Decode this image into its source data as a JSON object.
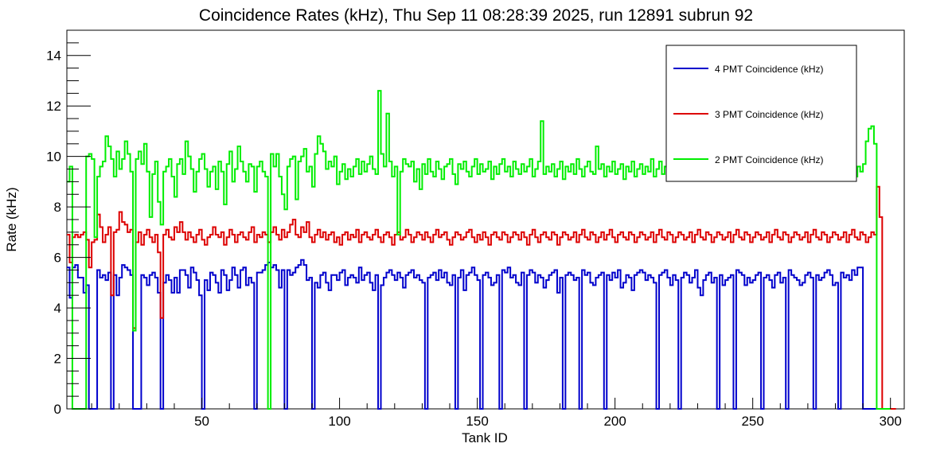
{
  "chart_data": {
    "type": "line",
    "title": "Coincidence Rates (kHz), Thu Sep 11 08:28:39 2025, run 12891 subrun 92",
    "xlabel": "Tank ID",
    "ylabel": "Rate (kHz)",
    "xlim": [
      1,
      305
    ],
    "ylim": [
      0,
      15
    ],
    "x_ticks": [
      50,
      100,
      150,
      200,
      250,
      300
    ],
    "y_ticks": [
      0,
      2,
      4,
      6,
      8,
      10,
      12,
      14
    ],
    "step": true,
    "legend_position": "top-right",
    "grid": false,
    "series": [
      {
        "name": "4 PMT Coincidence (kHz)",
        "color": "#0000cc",
        "values": [
          5.6,
          4.4,
          5.6,
          5.7,
          5.2,
          5.2,
          4.6,
          4.9,
          0,
          0,
          0,
          5.5,
          5.2,
          5.3,
          5.1,
          5.4,
          0,
          5.3,
          4.5,
          5.2,
          5.7,
          5.6,
          5.5,
          5.3,
          0,
          0,
          0,
          5.3,
          5.2,
          4.9,
          5.3,
          5.4,
          5.2,
          4.6,
          0,
          5.0,
          5.3,
          5.1,
          4.6,
          5.2,
          4.6,
          5.5,
          5.5,
          5.3,
          4.8,
          5.6,
          5.4,
          5.1,
          4.5,
          0,
          5.1,
          4.7,
          5.4,
          5.3,
          5.0,
          4.6,
          5.5,
          5.3,
          4.7,
          5.1,
          5.6,
          5.3,
          4.8,
          5.5,
          5.6,
          4.9,
          5.2,
          5.0,
          0,
          5.4,
          5.4,
          5.5,
          5.7,
          5.8,
          5.6,
          5.7,
          5.5,
          4.8,
          5.5,
          0,
          5.5,
          5.3,
          5.4,
          5.6,
          5.7,
          5.9,
          5.7,
          5.1,
          5.2,
          0,
          5.0,
          4.8,
          5.3,
          5.4,
          5.0,
          4.7,
          5.3,
          5.3,
          5.1,
          5.4,
          5.5,
          4.9,
          5.2,
          5.3,
          5.2,
          5.0,
          5.6,
          5.1,
          5.3,
          5.4,
          5.0,
          4.7,
          5.3,
          0,
          4.9,
          5.2,
          5.4,
          5.5,
          5.3,
          5.1,
          5.4,
          5.2,
          4.8,
          5.3,
          5.4,
          5.5,
          5.2,
          5.3,
          5.1,
          5.0,
          0,
          5.2,
          5.3,
          5.4,
          5.1,
          5.5,
          5.2,
          5.4,
          5.0,
          4.9,
          5.3,
          0,
          5.2,
          5.5,
          4.7,
          5.3,
          5.4,
          5.6,
          5.3,
          5.1,
          0,
          5.3,
          5.4,
          5.2,
          4.9,
          5.0,
          5.3,
          0,
          5.5,
          5.4,
          5.6,
          5.2,
          5.3,
          5.0,
          4.9,
          5.4,
          0,
          5.3,
          5.5,
          5.4,
          5.0,
          5.3,
          5.2,
          4.8,
          5.1,
          5.3,
          5.4,
          5.5,
          4.6,
          5.2,
          0,
          5.3,
          5.4,
          5.3,
          5.1,
          5.2,
          0,
          5.5,
          5.3,
          5.4,
          5.0,
          4.9,
          5.2,
          5.3,
          5.4,
          0,
          5.3,
          5.1,
          5.4,
          5.2,
          5.5,
          4.8,
          5.0,
          5.3,
          5.2,
          4.7,
          5.3,
          5.4,
          5.5,
          5.4,
          5.1,
          5.3,
          5.2,
          5.0,
          0,
          5.3,
          5.4,
          5.5,
          5.2,
          4.9,
          5.3,
          5.1,
          0,
          5.2,
          5.4,
          5.3,
          5.0,
          5.2,
          5.5,
          4.8,
          4.5,
          5.1,
          5.3,
          5.4,
          5.0,
          5.2,
          0,
          5.3,
          4.9,
          5.1,
          5.2,
          5.3,
          0,
          5.5,
          5.4,
          5.3,
          4.9,
          5.2,
          5.0,
          5.1,
          5.3,
          5.4,
          0,
          5.2,
          5.3,
          5.1,
          4.8,
          5.3,
          5.4,
          5.0,
          5.2,
          0,
          5.5,
          5.3,
          5.2,
          5.1,
          4.9,
          5.0,
          5.3,
          5.4,
          5.2,
          0,
          5.3,
          5.1,
          5.2,
          5.4,
          5.5,
          5.3,
          4.9,
          5.0,
          0,
          5.4,
          5.2,
          5.3,
          5.1,
          5.5,
          5.3,
          5.6,
          5.6,
          0,
          0,
          0,
          0,
          0
        ]
      },
      {
        "name": "3 PMT Coincidence (kHz)",
        "color": "#dd0000",
        "values": [
          6.9,
          5.8,
          6.8,
          6.9,
          6.8,
          6.9,
          7.0,
          6.7,
          5.6,
          6.6,
          6.7,
          7.7,
          7.2,
          6.6,
          6.9,
          7.2,
          4.5,
          7.0,
          7.1,
          7.8,
          7.4,
          7.3,
          7.0,
          7.1,
          3.2,
          6.6,
          7.0,
          6.5,
          6.9,
          7.1,
          6.8,
          6.6,
          6.9,
          6.2,
          3.6,
          6.9,
          7.1,
          6.8,
          6.7,
          7.2,
          7.0,
          7.4,
          7.0,
          6.7,
          7.0,
          6.8,
          6.6,
          6.9,
          7.1,
          6.7,
          6.5,
          6.8,
          6.9,
          7.2,
          6.9,
          6.8,
          7.0,
          6.5,
          6.8,
          7.1,
          6.9,
          6.6,
          6.9,
          7.0,
          6.8,
          6.7,
          7.0,
          7.2,
          6.6,
          6.9,
          6.8,
          7.0,
          6.9,
          6.6,
          7.0,
          7.2,
          6.9,
          6.7,
          7.1,
          6.8,
          7.0,
          7.3,
          7.5,
          6.9,
          6.8,
          7.2,
          7.0,
          7.4,
          6.8,
          6.6,
          6.9,
          7.1,
          6.8,
          7.0,
          6.7,
          6.9,
          7.0,
          6.6,
          6.8,
          6.5,
          6.9,
          7.0,
          6.7,
          6.9,
          6.8,
          7.1,
          6.6,
          6.9,
          7.0,
          6.8,
          6.7,
          6.9,
          7.1,
          6.8,
          6.6,
          6.9,
          7.0,
          6.8,
          6.5,
          6.9,
          7.0,
          6.7,
          6.8,
          7.1,
          6.9,
          6.6,
          6.8,
          7.0,
          6.9,
          6.7,
          7.0,
          6.8,
          6.6,
          6.9,
          7.1,
          6.8,
          6.9,
          7.0,
          6.7,
          6.5,
          6.8,
          7.0,
          6.9,
          6.7,
          6.8,
          7.0,
          7.1,
          6.8,
          6.6,
          6.9,
          6.7,
          7.0,
          6.8,
          6.5,
          6.9,
          7.0,
          6.8,
          6.7,
          7.0,
          6.9,
          6.6,
          6.8,
          7.0,
          6.9,
          6.7,
          7.0,
          6.8,
          6.5,
          6.9,
          7.1,
          6.8,
          6.6,
          6.9,
          7.0,
          6.8,
          6.7,
          7.0,
          6.9,
          6.5,
          6.8,
          7.0,
          6.9,
          6.7,
          6.8,
          7.0,
          6.6,
          6.9,
          7.1,
          6.8,
          6.7,
          7.0,
          6.9,
          6.6,
          6.8,
          7.0,
          6.7,
          6.9,
          7.1,
          6.8,
          6.6,
          6.9,
          7.0,
          6.8,
          6.7,
          7.0,
          6.9,
          6.6,
          6.8,
          7.0,
          6.9,
          6.7,
          6.8,
          7.0,
          6.6,
          6.9,
          7.1,
          6.8,
          6.7,
          7.0,
          6.9,
          6.6,
          6.8,
          7.0,
          6.9,
          6.7,
          6.8,
          7.0,
          6.6,
          6.9,
          7.1,
          6.8,
          6.7,
          7.0,
          6.9,
          6.6,
          6.8,
          7.0,
          6.9,
          6.7,
          6.8,
          7.0,
          6.6,
          6.9,
          7.1,
          6.8,
          6.7,
          7.0,
          6.9,
          6.6,
          6.8,
          7.0,
          6.9,
          6.7,
          6.8,
          7.0,
          6.6,
          6.9,
          7.1,
          6.8,
          6.7,
          7.0,
          6.9,
          6.6,
          6.8,
          7.0,
          6.9,
          6.7,
          6.8,
          7.0,
          6.6,
          6.9,
          7.1,
          6.8,
          6.7,
          7.0,
          6.9,
          6.6,
          6.8,
          7.0,
          6.9,
          6.7,
          6.8,
          7.0,
          6.6,
          6.9,
          7.1,
          6.8,
          6.7,
          7.0,
          6.9,
          6.6,
          6.8,
          7.0,
          6.9,
          8.8,
          7.6,
          0,
          0,
          0,
          0,
          0
        ]
      },
      {
        "name": "2 PMT Coincidence (kHz)",
        "color": "#00ee00",
        "values": [
          9.0,
          9.6,
          0,
          0,
          0,
          0,
          0,
          10.0,
          10.1,
          9.9,
          6.8,
          9.2,
          9.6,
          9.8,
          10.8,
          10.4,
          9.9,
          9.2,
          10.2,
          9.5,
          9.9,
          10.6,
          10.1,
          9.4,
          3.1,
          9.9,
          10.2,
          9.7,
          10.5,
          9.4,
          7.6,
          9.3,
          9.8,
          8.2,
          7.3,
          9.4,
          9.6,
          9.9,
          9.2,
          8.4,
          9.7,
          9.9,
          9.3,
          10.6,
          10.0,
          9.5,
          8.6,
          9.4,
          9.9,
          10.1,
          9.5,
          8.8,
          9.4,
          9.6,
          8.7,
          9.8,
          9.4,
          8.1,
          9.7,
          10.2,
          9.0,
          9.5,
          10.4,
          9.8,
          9.4,
          9.0,
          9.7,
          9.6,
          8.6,
          9.6,
          9.8,
          9.4,
          9.2,
          0,
          10.1,
          9.6,
          10.1,
          9.2,
          8.5,
          7.9,
          9.6,
          9.9,
          10.0,
          8.3,
          9.8,
          10.0,
          10.3,
          9.4,
          9.6,
          8.8,
          10.1,
          10.8,
          10.5,
          10.2,
          9.5,
          9.8,
          9.6,
          10.0,
          8.9,
          9.4,
          9.7,
          9.1,
          9.5,
          9.2,
          9.6,
          9.9,
          9.3,
          9.8,
          9.4,
          9.7,
          10.0,
          9.5,
          9.3,
          12.6,
          10.1,
          9.6,
          11.7,
          9.8,
          9.2,
          9.6,
          6.9,
          9.4,
          9.9,
          9.7,
          9.6,
          9.8,
          9.0,
          9.5,
          8.7,
          9.7,
          9.3,
          9.9,
          9.4,
          9.2,
          9.8,
          9.5,
          9.1,
          9.6,
          9.7,
          9.9,
          9.3,
          8.9,
          9.7,
          9.5,
          9.8,
          9.4,
          9.2,
          9.6,
          9.9,
          9.3,
          9.7,
          9.4,
          9.5,
          9.8,
          9.1,
          9.6,
          9.3,
          9.7,
          9.9,
          9.4,
          9.6,
          9.2,
          9.8,
          9.5,
          9.3,
          9.7,
          9.4,
          9.6,
          9.9,
          9.2,
          9.5,
          9.8,
          11.4,
          9.3,
          9.6,
          9.4,
          9.7,
          9.2,
          9.5,
          9.8,
          9.1,
          9.6,
          9.4,
          9.7,
          9.3,
          9.9,
          9.5,
          9.2,
          9.6,
          9.8,
          9.4,
          9.3,
          10.4,
          9.5,
          9.7,
          9.2,
          9.6,
          9.4,
          9.8,
          9.3,
          9.5,
          9.7,
          9.1,
          9.6,
          9.4,
          9.8,
          9.2,
          9.5,
          9.7,
          9.3,
          9.6,
          9.4,
          9.9,
          9.2,
          9.5,
          9.8,
          9.3,
          9.6,
          9.4,
          9.7,
          9.2,
          9.5,
          9.8,
          9.1,
          9.6,
          9.4,
          9.7,
          9.3,
          9.5,
          9.8,
          9.2,
          9.6,
          9.4,
          9.7,
          9.3,
          9.5,
          9.8,
          9.1,
          9.6,
          9.4,
          9.7,
          9.2,
          9.5,
          9.8,
          9.3,
          9.6,
          9.4,
          9.7,
          9.2,
          9.5,
          9.8,
          9.1,
          9.6,
          9.4,
          9.7,
          9.3,
          9.5,
          9.8,
          9.2,
          9.6,
          9.4,
          9.7,
          9.3,
          9.5,
          9.8,
          9.1,
          9.6,
          9.4,
          9.7,
          9.2,
          9.5,
          9.8,
          9.3,
          9.6,
          9.4,
          9.7,
          9.2,
          9.5,
          9.8,
          9.1,
          9.6,
          9.4,
          9.7,
          9.3,
          9.5,
          9.8,
          9.2,
          9.6,
          9.4,
          9.7,
          10.6,
          11.1,
          11.2,
          10.5,
          0,
          0,
          0,
          0,
          0
        ]
      }
    ]
  }
}
